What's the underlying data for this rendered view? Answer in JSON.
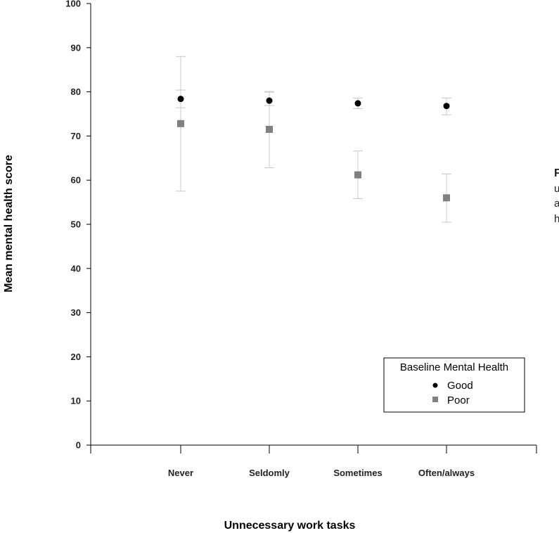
{
  "chart_data": {
    "type": "scatter",
    "title": "",
    "xlabel": "Unnecessary work tasks",
    "ylabel": "Mean mental health score",
    "categories": [
      "Never",
      "Seldomly",
      "Sometimes",
      "Often/always"
    ],
    "ylim": [
      0,
      100
    ],
    "yticks": [
      0,
      10,
      20,
      30,
      40,
      50,
      60,
      70,
      80,
      90,
      100
    ],
    "grid": false,
    "legend": {
      "title": "Baseline Mental Health",
      "placement": "bottom-right"
    },
    "series": [
      {
        "name": "Good",
        "marker": "circle",
        "color": "#000000",
        "values": [
          78.4,
          78.0,
          77.4,
          76.8
        ],
        "ci_low": [
          76.4,
          76.9,
          76.2,
          74.8
        ],
        "ci_high": [
          80.4,
          79.9,
          78.6,
          78.6
        ]
      },
      {
        "name": "Poor",
        "marker": "square",
        "color": "#808080",
        "values": [
          72.8,
          71.5,
          61.2,
          56.0
        ],
        "ci_low": [
          57.5,
          62.8,
          55.8,
          50.5
        ],
        "ci_high": [
          88.0,
          80.1,
          66.6,
          61.4
        ]
      }
    ],
    "errorbar_color": "#c8c8c8"
  },
  "side_text": [
    "F",
    "u",
    "a",
    "h"
  ]
}
